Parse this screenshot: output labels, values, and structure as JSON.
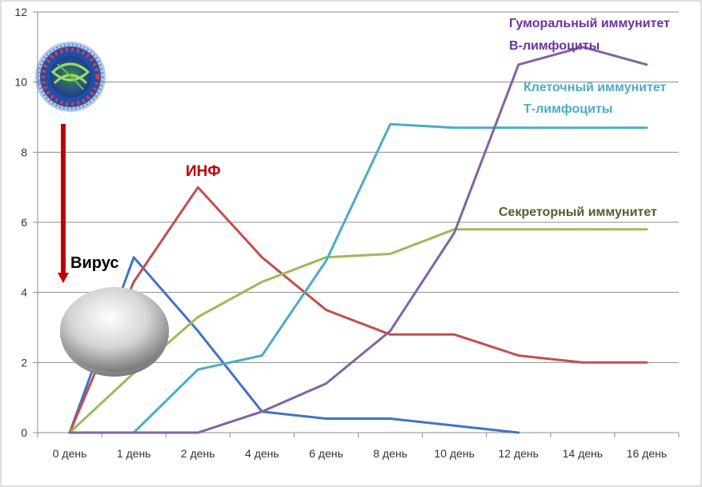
{
  "chart_data": {
    "type": "line",
    "categories": [
      "0 день",
      "1 день",
      "2 день",
      "4 день",
      "6 день",
      "8 день",
      "10 день",
      "12 день",
      "14 день",
      "16 день"
    ],
    "ylim": [
      0,
      12
    ],
    "yticks": [
      0,
      2,
      4,
      6,
      8,
      10,
      12
    ],
    "grid": true,
    "series": [
      {
        "key": "virus",
        "color": "#4472C4",
        "values": [
          0,
          5.0,
          2.9,
          0.6,
          0.4,
          0.4,
          0.2,
          0.0,
          null,
          null
        ]
      },
      {
        "key": "inf",
        "color": "#C0504D",
        "values": [
          0,
          4.3,
          7.0,
          5.0,
          3.5,
          2.8,
          2.8,
          2.2,
          2.0,
          2.0
        ]
      },
      {
        "key": "secretory",
        "color": "#9BBB59",
        "values": [
          0,
          1.7,
          3.3,
          4.3,
          5.0,
          5.1,
          5.8,
          5.8,
          5.8,
          5.8
        ]
      },
      {
        "key": "cellular",
        "color": "#4BACC6",
        "values": [
          0,
          0,
          1.8,
          2.2,
          4.9,
          8.8,
          8.7,
          8.7,
          8.7,
          8.7
        ]
      },
      {
        "key": "humoral",
        "color": "#8064A2",
        "values": [
          0,
          0,
          0,
          0.6,
          1.4,
          2.9,
          5.7,
          10.5,
          11.0,
          10.5
        ]
      }
    ],
    "annotations": {
      "virus_label": "Вирус",
      "inf_label": "ИНФ",
      "secretory_label": "Секреторный иммунитет",
      "cellular_line1": "Клеточный иммунитет",
      "cellular_line2": "Т-лимфоциты",
      "humoral_line1": "Гуморальный иммунитет",
      "humoral_line2": "В-лимфоциты"
    },
    "colors": {
      "virus_text": "#000000",
      "inf_text": "#C00000",
      "secretory_text": "#4F6228",
      "cellular_text": "#4BACC6",
      "humoral_text": "#7030A0",
      "arrow": "#C00000"
    },
    "icons": {
      "virus_picture": "virus-particle-icon",
      "cell_picture": "cell-sphere-icon"
    }
  }
}
